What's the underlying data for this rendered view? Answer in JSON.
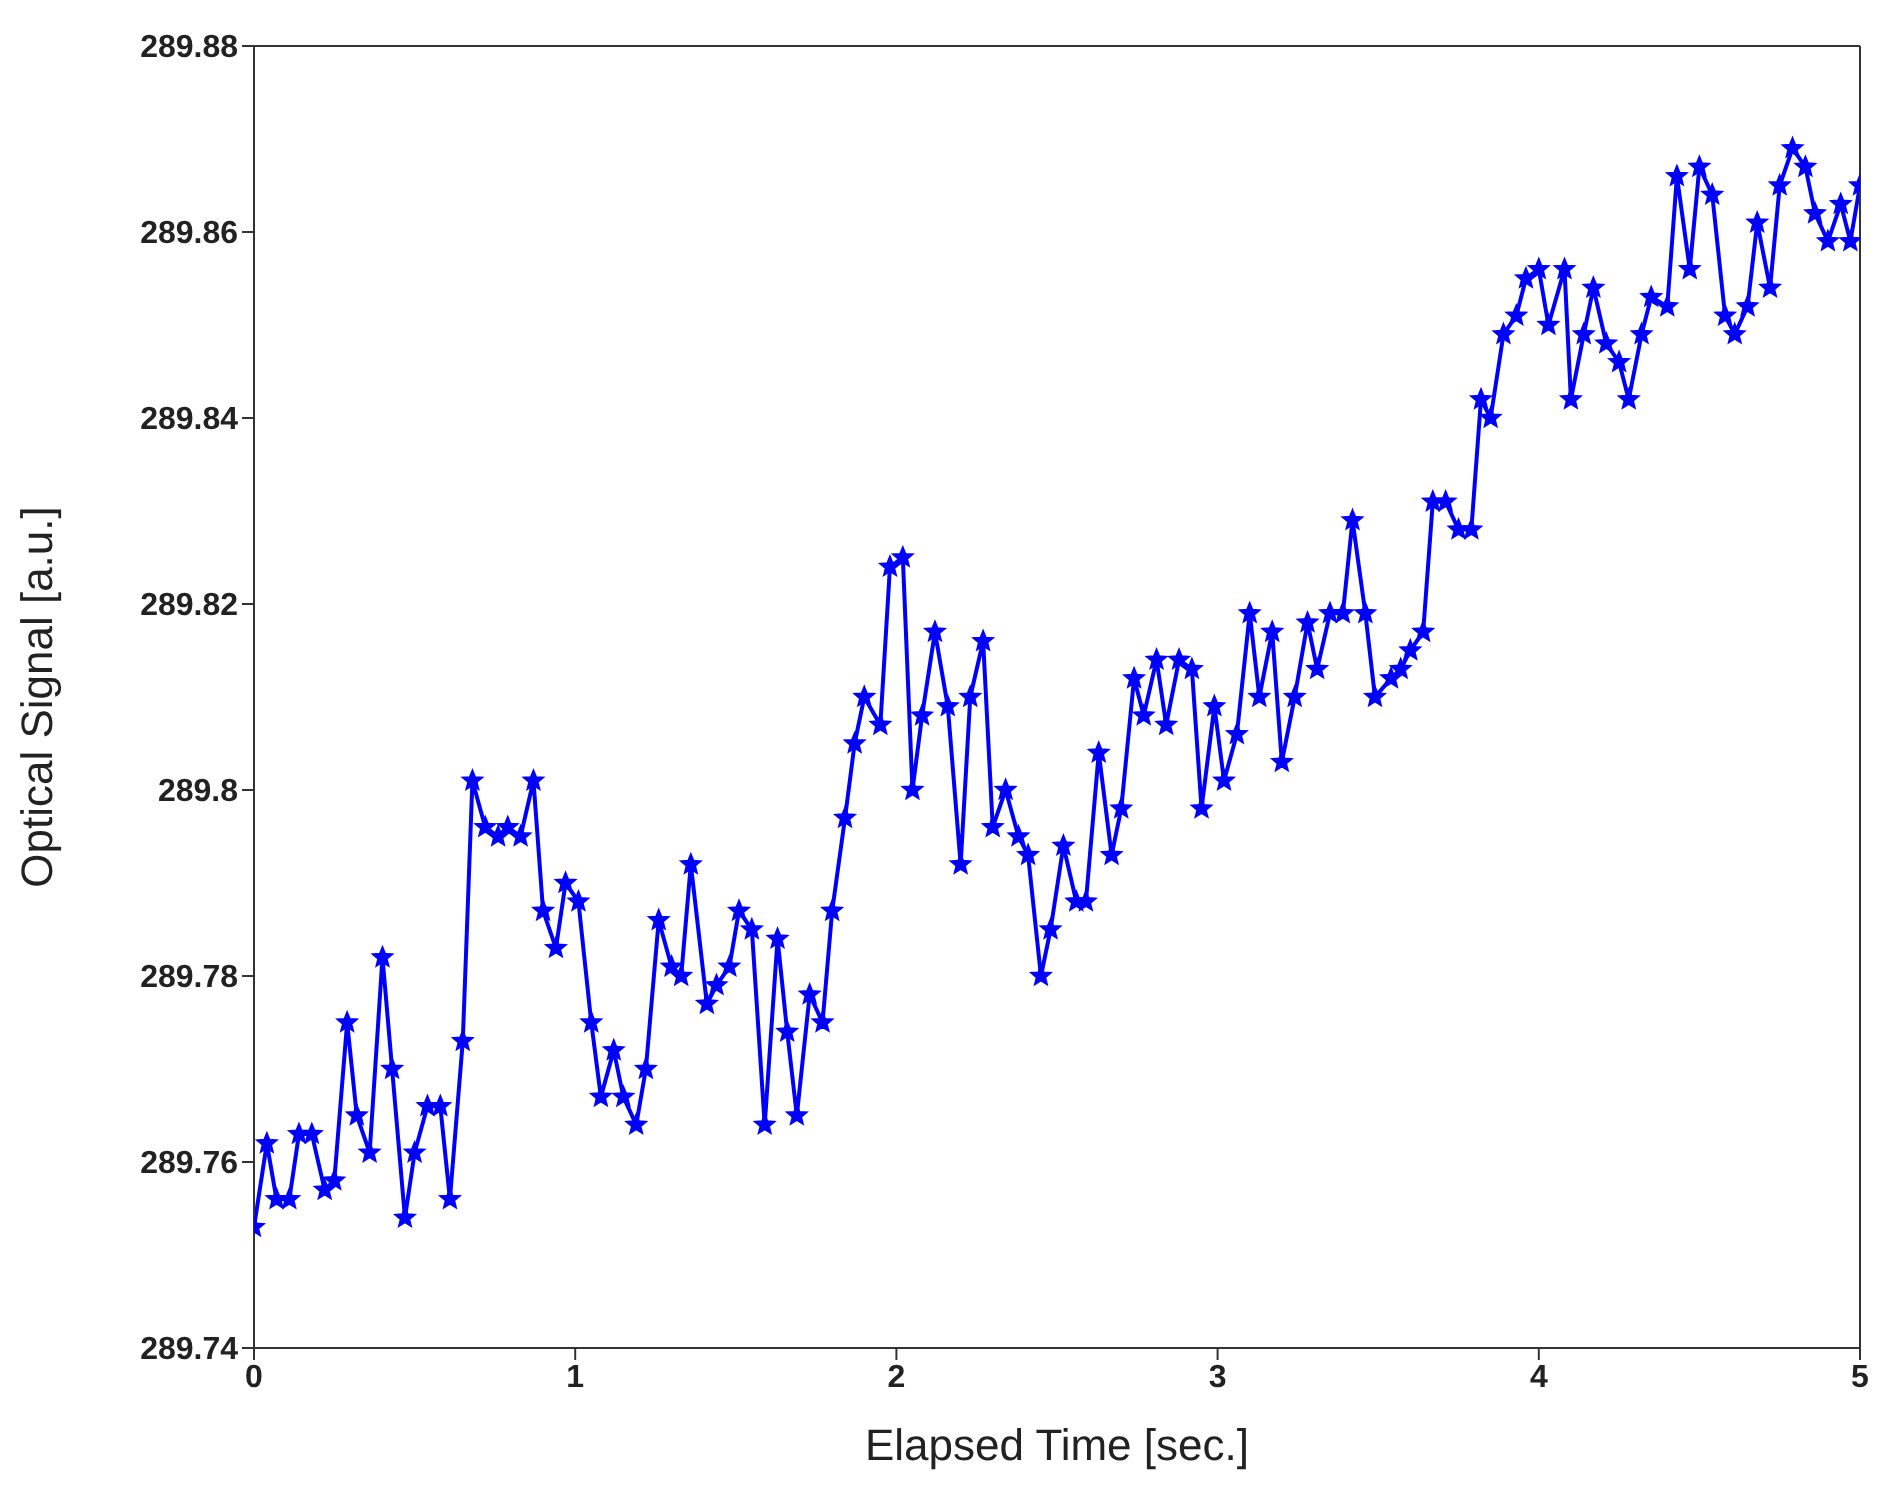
{
  "chart_data": {
    "type": "line",
    "xlabel": "Elapsed Time [sec.]",
    "ylabel": "Optical Signal [a.u.]",
    "xlim": [
      0,
      5
    ],
    "xticks": [
      0,
      1,
      2,
      3,
      4,
      5
    ],
    "ylim": [
      289.74,
      289.88
    ],
    "yticks": [
      289.74,
      289.76,
      289.78,
      289.8,
      289.82,
      289.84,
      289.86,
      289.88
    ],
    "legend": false,
    "marker": "star",
    "line_style": "solid",
    "series": [
      {
        "color": "#0000ff",
        "x": [
          0,
          0.04,
          0.07,
          0.11,
          0.14,
          0.18,
          0.22,
          0.25,
          0.29,
          0.32,
          0.36,
          0.4,
          0.43,
          0.47,
          0.5,
          0.54,
          0.58,
          0.61,
          0.65,
          0.68,
          0.72,
          0.76,
          0.79,
          0.83,
          0.87,
          0.9,
          0.94,
          0.97,
          1.01,
          1.05,
          1.08,
          1.12,
          1.15,
          1.19,
          1.22,
          1.26,
          1.3,
          1.33,
          1.36,
          1.41,
          1.44,
          1.48,
          1.51,
          1.55,
          1.59,
          1.63,
          1.66,
          1.69,
          1.73,
          1.77,
          1.8,
          1.84,
          1.87,
          1.9,
          1.95,
          1.98,
          2.02,
          2.05,
          2.08,
          2.12,
          2.16,
          2.2,
          2.23,
          2.27,
          2.3,
          2.34,
          2.38,
          2.41,
          2.45,
          2.48,
          2.52,
          2.56,
          2.59,
          2.63,
          2.67,
          2.7,
          2.74,
          2.77,
          2.81,
          2.84,
          2.88,
          2.92,
          2.95,
          2.99,
          3.02,
          3.06,
          3.1,
          3.13,
          3.17,
          3.2,
          3.24,
          3.28,
          3.31,
          3.35,
          3.39,
          3.42,
          3.46,
          3.49,
          3.54,
          3.57,
          3.6,
          3.64,
          3.67,
          3.71,
          3.75,
          3.79,
          3.82,
          3.85,
          3.89,
          3.93,
          3.96,
          4,
          4.03,
          4.08,
          4.1,
          4.14,
          4.17,
          4.21,
          4.25,
          4.28,
          4.32,
          4.35,
          4.4,
          4.43,
          4.47,
          4.5,
          4.54,
          4.58,
          4.61,
          4.65,
          4.68,
          4.72,
          4.75,
          4.79,
          4.83,
          4.86,
          4.9,
          4.94,
          4.97,
          5
        ],
        "values": [
          289.753,
          289.762,
          289.756,
          289.756,
          289.763,
          289.763,
          289.757,
          289.758,
          289.775,
          289.765,
          289.761,
          289.782,
          289.77,
          289.754,
          289.761,
          289.766,
          289.766,
          289.756,
          289.773,
          289.801,
          289.796,
          289.795,
          289.796,
          289.795,
          289.801,
          289.787,
          289.783,
          289.79,
          289.788,
          289.775,
          289.767,
          289.772,
          289.767,
          289.764,
          289.77,
          289.786,
          289.781,
          289.78,
          289.792,
          289.777,
          289.779,
          289.781,
          289.787,
          289.785,
          289.764,
          289.784,
          289.774,
          289.765,
          289.778,
          289.775,
          289.787,
          289.797,
          289.805,
          289.81,
          289.807,
          289.824,
          289.825,
          289.8,
          289.808,
          289.817,
          289.809,
          289.792,
          289.81,
          289.816,
          289.796,
          289.8,
          289.795,
          289.793,
          289.78,
          289.785,
          289.794,
          289.788,
          289.788,
          289.804,
          289.793,
          289.798,
          289.812,
          289.808,
          289.814,
          289.807,
          289.814,
          289.813,
          289.798,
          289.809,
          289.801,
          289.806,
          289.819,
          289.81,
          289.817,
          289.803,
          289.81,
          289.818,
          289.813,
          289.819,
          289.819,
          289.829,
          289.819,
          289.81,
          289.812,
          289.813,
          289.815,
          289.817,
          289.831,
          289.831,
          289.828,
          289.828,
          289.842,
          289.84,
          289.849,
          289.851,
          289.855,
          289.856,
          289.85,
          289.856,
          289.842,
          289.849,
          289.854,
          289.848,
          289.846,
          289.842,
          289.849,
          289.853,
          289.852,
          289.866,
          289.856,
          289.867,
          289.864,
          289.851,
          289.849,
          289.852,
          289.861,
          289.854,
          289.865,
          289.869,
          289.867,
          289.862,
          289.859,
          289.863,
          289.859,
          289.865
        ]
      }
    ]
  }
}
